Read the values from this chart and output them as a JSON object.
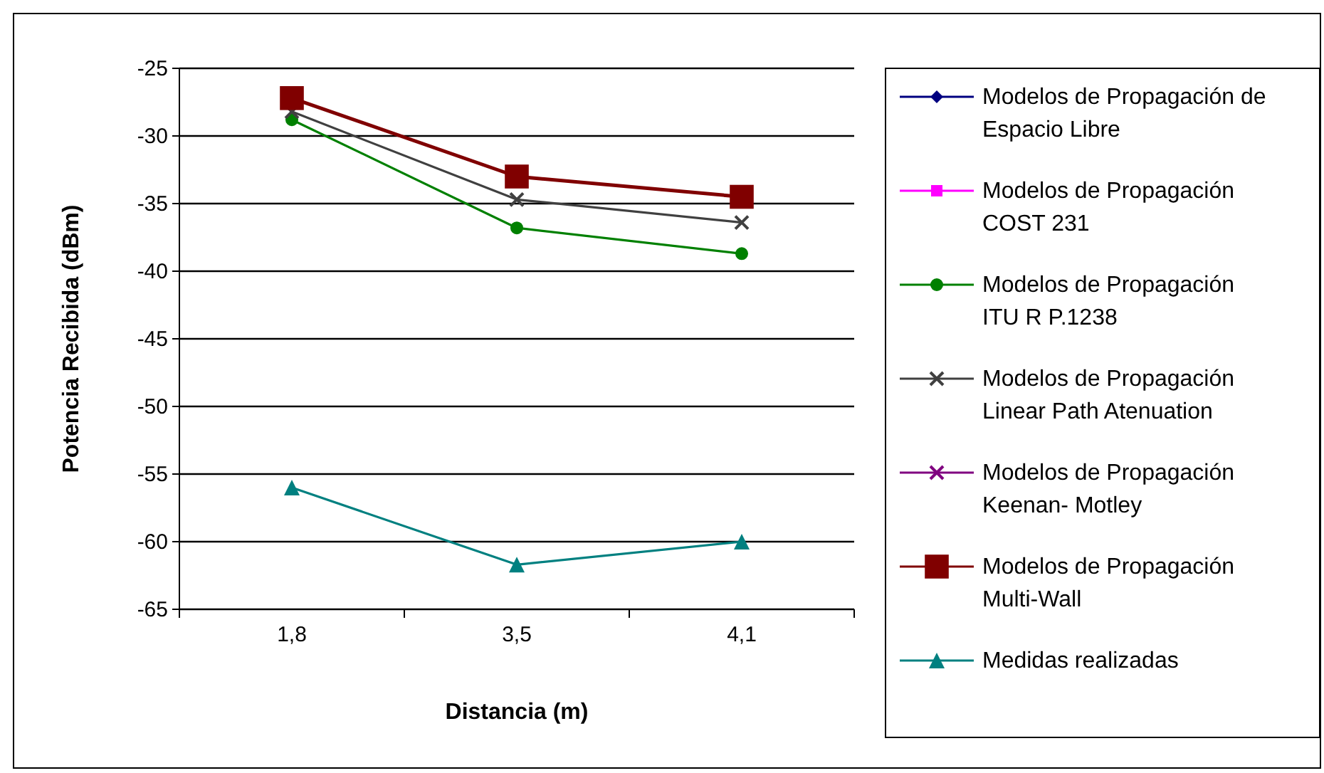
{
  "chart_data": {
    "type": "line",
    "xlabel": "Distancia (m)",
    "ylabel": "Potencia Recibida (dBm)",
    "categories": [
      "1,8",
      "3,5",
      "4,1"
    ],
    "ylim": [
      -65,
      -25
    ],
    "yticks": [
      -65,
      -60,
      -55,
      -50,
      -45,
      -40,
      -35,
      -30,
      -25
    ],
    "grid": "y",
    "legend": "right",
    "series": [
      {
        "name": "Modelos de Propagación de Espacio Libre",
        "color": "#000080",
        "marker": "diamond",
        "values": [
          null,
          null,
          null
        ]
      },
      {
        "name": "Modelos de Propagación COST 231",
        "color": "#ff00ff",
        "marker": "square",
        "values": [
          null,
          null,
          null
        ]
      },
      {
        "name": "Modelos de Propagación ITU R P.1238",
        "color": "#008000",
        "marker": "circle",
        "values": [
          -28.8,
          -36.8,
          -38.7
        ]
      },
      {
        "name": "Modelos de Propagación Linear Path Atenuation",
        "color": "#404040",
        "marker": "cross",
        "values": [
          -28.2,
          -34.7,
          -36.4
        ]
      },
      {
        "name": "Modelos de Propagación Keenan- Motley",
        "color": "#800080",
        "marker": "cross",
        "values": [
          null,
          null,
          null
        ]
      },
      {
        "name": "Modelos de Propagación Multi-Wall",
        "color": "#800000",
        "marker": "square",
        "values": [
          -27.2,
          -33.0,
          -34.5
        ]
      },
      {
        "name": "Medidas realizadas",
        "color": "#008080",
        "marker": "triangle",
        "values": [
          -56.0,
          -61.7,
          -60.0
        ]
      }
    ]
  }
}
